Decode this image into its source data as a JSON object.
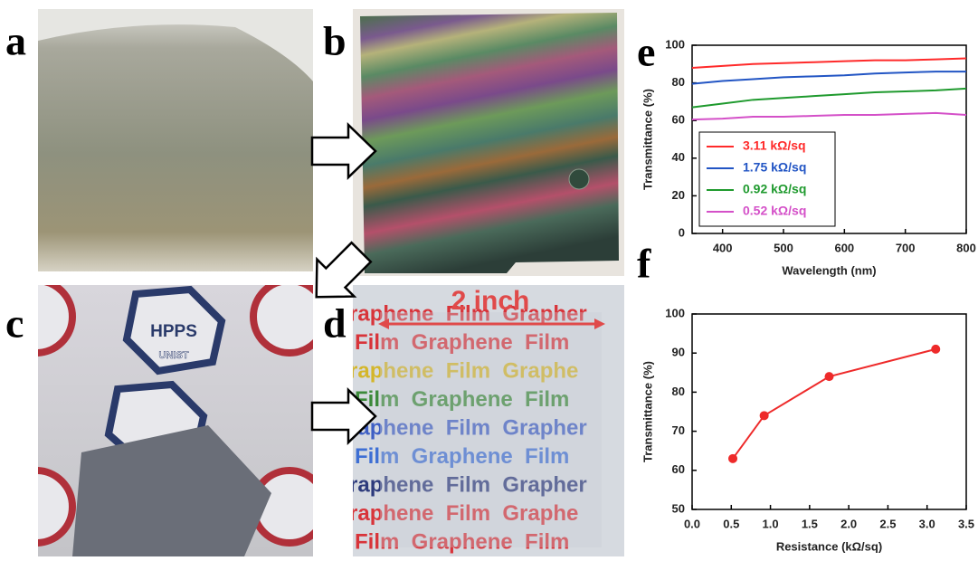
{
  "panels": {
    "a": "a",
    "b": "b",
    "c": "c",
    "d": "d",
    "e": "e",
    "f": "f"
  },
  "photo_c": {
    "logo_text": "HPPS",
    "logo_subtext": "UNIST"
  },
  "photo_d": {
    "scale_label": "2 inch",
    "rows": [
      {
        "text": "raphene  Film  Grapher",
        "color": "#d8343a"
      },
      {
        "text": "Film  Graphene  Film",
        "color": "#d8343a"
      },
      {
        "text": "raphene  Film  Graphe",
        "color": "#d4b62a"
      },
      {
        "text": "Film  Graphene  Film",
        "color": "#3c8a3a"
      },
      {
        "text": "raphene  Film  Grapher",
        "color": "#3e5fc4"
      },
      {
        "text": "Film  Graphene  Film",
        "color": "#3e6fd4"
      },
      {
        "text": "raphene  Film  Grapher",
        "color": "#2c3a7c"
      },
      {
        "text": "raphene  Film  Graphe",
        "color": "#d8343a"
      },
      {
        "text": "Film  Graphene  Film",
        "color": "#d8343a"
      }
    ]
  },
  "chart_data": [
    {
      "type": "line",
      "xlabel": "Wavelength (nm)",
      "ylabel": "Transmittance (%)",
      "x": [
        350,
        400,
        450,
        500,
        550,
        600,
        650,
        700,
        750,
        800
      ],
      "series": [
        {
          "name": "3.11 kΩ/sq",
          "color": "#ff2a2a",
          "values": [
            88,
            89,
            90,
            90.5,
            91,
            91.5,
            92,
            92,
            92.5,
            93
          ]
        },
        {
          "name": "1.75 kΩ/sq",
          "color": "#2255c4",
          "values": [
            79.5,
            81,
            82,
            83,
            83.5,
            84,
            85,
            85.5,
            86,
            86
          ]
        },
        {
          "name": "0.92 kΩ/sq",
          "color": "#1f9a2e",
          "values": [
            67,
            69,
            71,
            72,
            73,
            74,
            75,
            75.5,
            76,
            77
          ]
        },
        {
          "name": "0.52 kΩ/sq",
          "color": "#d450c8",
          "values": [
            60.5,
            61,
            62,
            62,
            62.5,
            63,
            63,
            63.5,
            64,
            63
          ]
        }
      ],
      "xlim": [
        350,
        800
      ],
      "xticks": [
        400,
        500,
        600,
        700,
        800
      ],
      "ylim": [
        0,
        100
      ],
      "yticks": [
        0,
        20,
        40,
        60,
        80,
        100
      ],
      "legend": "lower left"
    },
    {
      "type": "line",
      "markers": true,
      "xlabel": "Resistance (kΩ/sq)",
      "ylabel": "Transmittance (%)",
      "x": [
        0.52,
        0.92,
        1.75,
        3.11
      ],
      "values": [
        63,
        74,
        84,
        91
      ],
      "color": "#ee2a2a",
      "xlim": [
        0,
        3.5
      ],
      "xticks": [
        {
          "value": 0,
          "label": "0.0"
        },
        0.5,
        {
          "value": 1,
          "label": "1.0"
        },
        1.5,
        {
          "value": 2,
          "label": "2.0"
        },
        2.5,
        {
          "value": 3,
          "label": "3.0"
        },
        3.5
      ],
      "ylim": [
        50,
        100
      ],
      "yticks": [
        50,
        60,
        70,
        80,
        90,
        100
      ]
    }
  ]
}
